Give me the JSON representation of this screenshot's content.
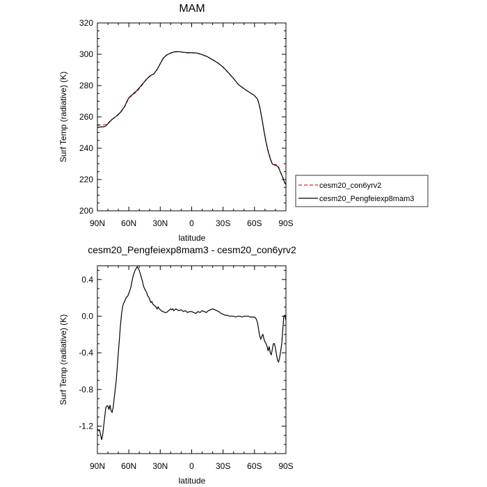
{
  "chart_data": [
    {
      "type": "line",
      "title": "MAM",
      "xlabel": "latitude",
      "ylabel": "Surf Temp (radiative) (K)",
      "xlim": [
        90,
        -90
      ],
      "ylim": [
        200,
        320
      ],
      "x_ticks": [
        90,
        60,
        30,
        0,
        -30,
        -60,
        -90
      ],
      "x_tick_labels": [
        "90N",
        "60N",
        "30N",
        "0",
        "30S",
        "60S",
        "90S"
      ],
      "y_ticks": [
        200,
        220,
        240,
        260,
        280,
        300,
        320
      ],
      "y_tick_labels": [
        "200",
        "220",
        "240",
        "260",
        "280",
        "300",
        "320"
      ],
      "grid": false,
      "legend_position": "right",
      "series": [
        {
          "name": "cesm20_con6yrv2",
          "color": "#dd2222",
          "dash": "dashed",
          "x": [
            90,
            87,
            85,
            82,
            80,
            76,
            72,
            68,
            64,
            60,
            56,
            52,
            48,
            44,
            40,
            36,
            33,
            30,
            27,
            24,
            20,
            16,
            12,
            8,
            4,
            0,
            -5,
            -10,
            -15,
            -20,
            -25,
            -30,
            -35,
            -40,
            -45,
            -50,
            -55,
            -60,
            -63,
            -65,
            -67,
            -69,
            -71,
            -73,
            -75,
            -77,
            -79,
            -81,
            -83,
            -85,
            -87,
            -89,
            -90
          ],
          "values": [
            254.5,
            254.8,
            254.8,
            255.1,
            256.0,
            258.4,
            260.2,
            262.6,
            266.4,
            272.0,
            274.2,
            276.4,
            279.7,
            283.2,
            285.9,
            287.5,
            290.2,
            294.0,
            297.6,
            299.4,
            300.7,
            301.5,
            301.6,
            301.2,
            300.9,
            300.9,
            300.7,
            299.7,
            298.4,
            296.4,
            294.4,
            291.7,
            288.2,
            284.5,
            280.3,
            278.0,
            275.7,
            273.6,
            271.3,
            266.4,
            259.3,
            251.4,
            244.1,
            238.4,
            233.8,
            230.1,
            229.6,
            229.4,
            228.0,
            224.6,
            221.5,
            218.0,
            217.0
          ]
        },
        {
          "name": "cesm20_Pengfeiexp8mam3",
          "color": "#000000",
          "dash": "solid",
          "x": [
            90,
            88,
            86,
            84,
            82,
            80,
            76,
            72,
            68,
            64,
            60,
            56,
            52,
            48,
            44,
            40,
            36,
            33,
            30,
            27,
            24,
            20,
            16,
            12,
            8,
            4,
            0,
            -5,
            -10,
            -15,
            -20,
            -25,
            -30,
            -35,
            -40,
            -45,
            -50,
            -55,
            -60,
            -63,
            -65,
            -67,
            -69,
            -71,
            -73,
            -75,
            -77,
            -79,
            -81,
            -83,
            -85,
            -87,
            -89,
            -90
          ],
          "values": [
            253.1,
            253.5,
            253.6,
            253.6,
            254.2,
            255.6,
            258.4,
            260.4,
            262.9,
            266.7,
            272.3,
            274.6,
            277.0,
            280.2,
            283.4,
            286.1,
            287.6,
            290.3,
            294.0,
            297.6,
            299.5,
            300.8,
            301.6,
            301.7,
            301.3,
            301.0,
            301.0,
            300.8,
            299.8,
            298.5,
            296.5,
            294.5,
            291.8,
            288.3,
            284.5,
            280.4,
            278.0,
            275.8,
            273.6,
            271.2,
            266.3,
            259.1,
            251.1,
            243.8,
            237.9,
            233.4,
            229.8,
            229.3,
            229.0,
            227.6,
            224.3,
            221.2,
            217.6,
            216.7
          ]
        }
      ]
    },
    {
      "type": "line",
      "title": "cesm20_Pengfeiexp8mam3 - cesm20_con6yrv2",
      "xlabel": "latitude",
      "ylabel": "Surf Temp (radiative) (K)",
      "xlim": [
        90,
        -90
      ],
      "ylim": [
        -1.5,
        0.55
      ],
      "x_ticks": [
        90,
        60,
        30,
        0,
        -30,
        -60,
        -90
      ],
      "x_tick_labels": [
        "90N",
        "60N",
        "30N",
        "0",
        "30S",
        "60S",
        "90S"
      ],
      "y_ticks": [
        -1.2,
        -0.8,
        -0.4,
        0.0,
        0.4
      ],
      "y_tick_labels": [
        "-1.2",
        "-0.8",
        "-0.4",
        "0.0",
        "0.4"
      ],
      "grid": false,
      "series": [
        {
          "color": "#000000",
          "dash": "solid",
          "x": [
            90,
            89,
            88,
            87,
            86,
            85,
            84,
            83,
            82,
            81,
            80,
            79,
            78,
            77,
            76,
            75,
            74,
            73,
            72,
            71,
            70,
            69,
            68,
            67,
            66,
            65,
            64,
            63,
            62,
            61,
            60,
            59,
            58,
            57,
            56,
            55,
            54,
            53,
            52,
            51,
            50,
            49,
            48,
            47,
            46,
            45,
            44,
            43,
            42,
            41,
            40,
            39,
            38,
            37,
            36,
            35,
            34,
            33,
            32,
            31,
            30,
            29,
            28,
            27,
            26,
            25,
            24,
            23,
            22,
            21,
            20,
            19,
            18,
            17,
            16,
            15,
            14,
            12,
            10,
            8,
            6,
            4,
            2,
            0,
            -2,
            -4,
            -6,
            -8,
            -10,
            -12,
            -14,
            -16,
            -18,
            -20,
            -22,
            -24,
            -26,
            -28,
            -30,
            -32,
            -34,
            -36,
            -38,
            -40,
            -42,
            -44,
            -46,
            -48,
            -50,
            -52,
            -54,
            -56,
            -58,
            -60,
            -61,
            -62,
            -63,
            -64,
            -65,
            -66,
            -67,
            -68,
            -69,
            -70,
            -71,
            -72,
            -73,
            -74,
            -75,
            -76,
            -77,
            -78,
            -79,
            -80,
            -81,
            -82,
            -83,
            -84,
            -85,
            -86,
            -87,
            -88,
            -89,
            -90
          ],
          "values": [
            -1.23,
            -1.25,
            -1.24,
            -1.29,
            -1.35,
            -1.3,
            -1.2,
            -1.1,
            -1.0,
            -0.98,
            -0.98,
            -1.02,
            -0.97,
            -1.03,
            -1.05,
            -1.0,
            -0.9,
            -0.8,
            -0.7,
            -0.55,
            -0.4,
            -0.25,
            -0.1,
            0.02,
            0.1,
            0.14,
            0.16,
            0.19,
            0.21,
            0.22,
            0.25,
            0.28,
            0.32,
            0.38,
            0.43,
            0.47,
            0.5,
            0.52,
            0.54,
            0.52,
            0.5,
            0.46,
            0.42,
            0.38,
            0.33,
            0.3,
            0.28,
            0.26,
            0.22,
            0.21,
            0.18,
            0.15,
            0.16,
            0.13,
            0.12,
            0.11,
            0.1,
            0.08,
            0.1,
            0.08,
            0.07,
            0.06,
            0.05,
            0.05,
            0.04,
            0.04,
            0.04,
            0.05,
            0.06,
            0.07,
            0.08,
            0.07,
            0.08,
            0.06,
            0.07,
            0.08,
            0.07,
            0.06,
            0.07,
            0.05,
            0.06,
            0.04,
            0.05,
            0.05,
            0.04,
            0.03,
            0.05,
            0.04,
            0.06,
            0.05,
            0.04,
            0.06,
            0.07,
            0.08,
            0.07,
            0.06,
            0.05,
            0.03,
            0.02,
            0.01,
            0.01,
            0.0,
            0.0,
            0.0,
            -0.01,
            0.0,
            0.0,
            -0.01,
            0.0,
            0.0,
            0.0,
            -0.01,
            -0.01,
            -0.01,
            -0.02,
            -0.04,
            -0.08,
            -0.15,
            -0.22,
            -0.25,
            -0.22,
            -0.2,
            -0.25,
            -0.28,
            -0.3,
            -0.33,
            -0.38,
            -0.33,
            -0.4,
            -0.42,
            -0.36,
            -0.3,
            -0.3,
            -0.35,
            -0.42,
            -0.48,
            -0.5,
            -0.45,
            -0.38,
            -0.3,
            -0.15,
            0.0,
            0.01,
            -0.05
          ]
        }
      ]
    }
  ]
}
